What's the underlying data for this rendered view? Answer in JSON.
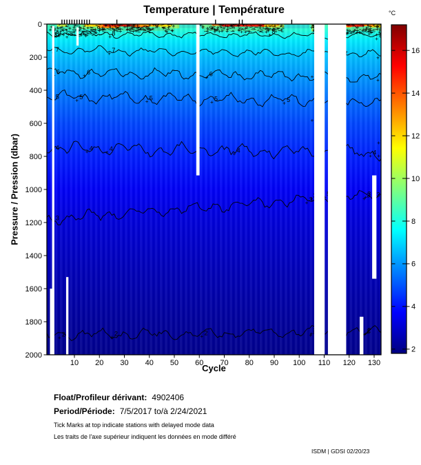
{
  "title": "Temperature | Température",
  "footer": {
    "float_label": "Float/Profileur dérivant:",
    "float_value": "4902406",
    "period_label": "Period/Période:",
    "period_value": "7/5/2017  to/à  2/24/2021",
    "note_en": "Tick Marks at top indicate stations with delayed mode data",
    "note_fr": "Les traits de l'axe supérieur indiquent les données en mode différé",
    "credit": "ISDM | GDSI 02/20/23"
  },
  "chart_data": {
    "type": "heatmap",
    "title": "Temperature | Température",
    "xlabel": "Cycle",
    "ylabel": "Pressure / Pression (dbar)",
    "x_ticks": [
      10,
      20,
      30,
      40,
      50,
      60,
      70,
      80,
      90,
      100,
      110,
      120,
      130
    ],
    "y_ticks": [
      0,
      200,
      400,
      600,
      800,
      1000,
      1200,
      1400,
      1600,
      1800,
      2000
    ],
    "x_range": [
      1,
      133
    ],
    "y_range": [
      0,
      2000
    ],
    "grid": false,
    "colorbar": {
      "label": "°C",
      "ticks": [
        2,
        4,
        6,
        8,
        10,
        12,
        14,
        16
      ],
      "range": [
        1.8,
        17.2
      ],
      "colormap": "jet"
    },
    "profile": [
      {
        "p": 0,
        "t": 8.8
      },
      {
        "p": 30,
        "t": 8.2
      },
      {
        "p": 100,
        "t": 7.3
      },
      {
        "p": 200,
        "t": 6.6
      },
      {
        "p": 300,
        "t": 6.1
      },
      {
        "p": 450,
        "t": 5.4
      },
      {
        "p": 600,
        "t": 4.8
      },
      {
        "p": 800,
        "t": 4.2
      },
      {
        "p": 1000,
        "t": 3.6
      },
      {
        "p": 1200,
        "t": 3.15
      },
      {
        "p": 1500,
        "t": 2.65
      },
      {
        "p": 1750,
        "t": 2.3
      },
      {
        "p": 2000,
        "t": 2.0
      }
    ],
    "contours": [
      {
        "level": 8,
        "p_left": 60,
        "p_right": 70,
        "amp": 22,
        "labels": [
          2.5,
          8,
          132
        ]
      },
      {
        "level": 7,
        "p_left": 155,
        "p_right": 185,
        "amp": 28,
        "labels": [
          2.5,
          25,
          118,
          132.5
        ]
      },
      {
        "level": 6,
        "p_left": 290,
        "p_right": 320,
        "amp": 38,
        "labels": [
          2.8,
          15,
          64,
          132.5
        ]
      },
      {
        "level": 5,
        "p_left": 440,
        "p_right": 470,
        "amp": 42,
        "labels": [
          2.5,
          12,
          40,
          66,
          95
        ]
      },
      {
        "level": 4,
        "p_left": 750,
        "p_right": 780,
        "amp": 48,
        "labels": [
          2.5,
          16,
          24,
          75,
          129.5,
          132.8
        ]
      },
      {
        "level": 3,
        "p_left": 1180,
        "p_right": 1030,
        "amp": 40,
        "labels": [
          2.5,
          104,
          127,
          131
        ]
      },
      {
        "level": 2,
        "p_left": 1880,
        "p_right": 1860,
        "amp": 38,
        "labels": [
          5,
          26,
          62,
          105.6,
          127
        ]
      }
    ],
    "extra_labels": [
      {
        "t": "9",
        "c": 19,
        "p": 30
      },
      {
        "t": "8",
        "c": 25,
        "p": 58
      },
      {
        "t": "9",
        "c": 64,
        "p": 28
      },
      {
        "t": "8",
        "c": 89,
        "p": 48
      },
      {
        "t": "8",
        "c": 131.8,
        "p": 45
      },
      {
        "t": "7",
        "c": 105.9,
        "p": 300
      },
      {
        "t": "6",
        "c": 105.9,
        "p": 565
      },
      {
        "t": "5",
        "c": 111,
        "p": 1030
      },
      {
        "t": "3",
        "c": 105.6,
        "p": 1040
      },
      {
        "t": "2",
        "c": 105.6,
        "p": 1855
      },
      {
        "t": "3",
        "c": 127.3,
        "p": 1030
      },
      {
        "t": "2",
        "c": 127.3,
        "p": 1855
      },
      {
        "t": "4",
        "c": 132.5,
        "p": 700
      }
    ],
    "surface_patches": [
      {
        "c1": 0,
        "c2": 12.5,
        "p1": 0,
        "p2": 34,
        "color": "#3CE8B4"
      },
      {
        "c1": 12.5,
        "c2": 20,
        "p1": 0,
        "p2": 30,
        "color": "#6CF080"
      },
      {
        "c1": 20,
        "c2": 50,
        "p1": 14,
        "p2": 40,
        "color": "#46E8A0"
      },
      {
        "c1": 44,
        "c2": 52,
        "p1": 0,
        "p2": 26,
        "color": "#8CF070"
      },
      {
        "c1": 52,
        "c2": 61,
        "p1": 0,
        "p2": 24,
        "color": "#34E0C8"
      },
      {
        "c1": 61,
        "c2": 69,
        "p1": 0,
        "p2": 28,
        "color": "#70F08C"
      },
      {
        "c1": 62,
        "c2": 93,
        "p1": 18,
        "p2": 42,
        "color": "#46E8A0"
      },
      {
        "c1": 88,
        "c2": 94,
        "p1": 0,
        "p2": 22,
        "color": "#B4F05A"
      },
      {
        "c1": 94,
        "c2": 104,
        "p1": 0,
        "p2": 26,
        "color": "#2EDCD2"
      },
      {
        "c1": 104.9,
        "c2": 105.8,
        "p1": 0,
        "p2": 45,
        "color": "#A0F060"
      },
      {
        "c1": 119,
        "c2": 133,
        "p1": 16,
        "p2": 40,
        "color": "#5AE89C"
      },
      {
        "c1": 3,
        "c2": 7,
        "p1": 0,
        "p2": 16,
        "color": "#C8F040"
      },
      {
        "c1": 14,
        "c2": 19.5,
        "p1": 0,
        "p2": 15,
        "color": "#FFD800"
      },
      {
        "c1": 40,
        "c2": 49,
        "p1": 0,
        "p2": 15,
        "color": "#FFE000"
      },
      {
        "c1": 128,
        "c2": 133,
        "p1": 0,
        "p2": 20,
        "color": "#FFE000"
      },
      {
        "c1": 19.5,
        "c2": 28,
        "p1": 0,
        "p2": 24,
        "color": "#FF8800"
      },
      {
        "c1": 33,
        "c2": 40,
        "p1": 0,
        "p2": 18,
        "color": "#FF6000"
      },
      {
        "c1": 36,
        "c2": 44,
        "p1": 0,
        "p2": 11,
        "color": "#FFA000"
      },
      {
        "c1": 65,
        "c2": 92,
        "p1": 0,
        "p2": 9,
        "color": "#FF7000"
      },
      {
        "c1": 84,
        "c2": 91,
        "p1": 0,
        "p2": 18,
        "color": "#FFC400"
      },
      {
        "c1": 117,
        "c2": 121,
        "p1": 0,
        "p2": 20,
        "color": "#FFB000"
      },
      {
        "c1": 125,
        "c2": 130,
        "p1": 0,
        "p2": 13,
        "color": "#FF8800"
      },
      {
        "c1": 21.5,
        "c2": 33,
        "p1": 0,
        "p2": 14,
        "color": "#EE1800"
      },
      {
        "c1": 69,
        "c2": 86,
        "p1": 0,
        "p2": 15,
        "color": "#E81400"
      },
      {
        "c1": 119,
        "c2": 126,
        "p1": 0,
        "p2": 16,
        "color": "#EE1800"
      }
    ],
    "surface_clutter_regions": [
      {
        "c1": 0.3,
        "c2": 20,
        "p1": 0,
        "p2": 75,
        "n": 100
      },
      {
        "c1": 20,
        "c2": 50,
        "p1": 0,
        "p2": 48,
        "n": 120
      },
      {
        "c1": 60,
        "c2": 93,
        "p1": 0,
        "p2": 48,
        "n": 120
      },
      {
        "c1": 104.9,
        "c2": 106.5,
        "p1": 0,
        "p2": 60,
        "n": 18
      },
      {
        "c1": 117,
        "c2": 133,
        "p1": 0,
        "p2": 60,
        "n": 90
      }
    ],
    "missing_data": [
      {
        "c1": 1.05,
        "c2": 1.95,
        "p1": 12,
        "p2": 2000
      },
      {
        "c1": 0.2,
        "c2": 1.9,
        "p1": 1600,
        "p2": 2000
      },
      {
        "c1": 6.7,
        "c2": 7.6,
        "p1": 1530,
        "p2": 2000
      },
      {
        "c1": 10.8,
        "c2": 11.7,
        "p1": 20,
        "p2": 130
      },
      {
        "c1": 58.8,
        "c2": 60.1,
        "p1": 0,
        "p2": 915
      },
      {
        "c1": 106.0,
        "c2": 110.2,
        "p1": 0,
        "p2": 2000
      },
      {
        "c1": 111.5,
        "c2": 118.8,
        "p1": 0,
        "p2": 2000
      },
      {
        "c1": 124.2,
        "c2": 125.7,
        "p1": 1770,
        "p2": 2000
      },
      {
        "c1": 129.2,
        "c2": 130.9,
        "p1": 915,
        "p2": 1540
      }
    ],
    "delayed_mode_tick_cycles": [
      5,
      6,
      7,
      8,
      9,
      10,
      11,
      12,
      13,
      14,
      15,
      16,
      27,
      66.5,
      76,
      77.2,
      97
    ]
  }
}
